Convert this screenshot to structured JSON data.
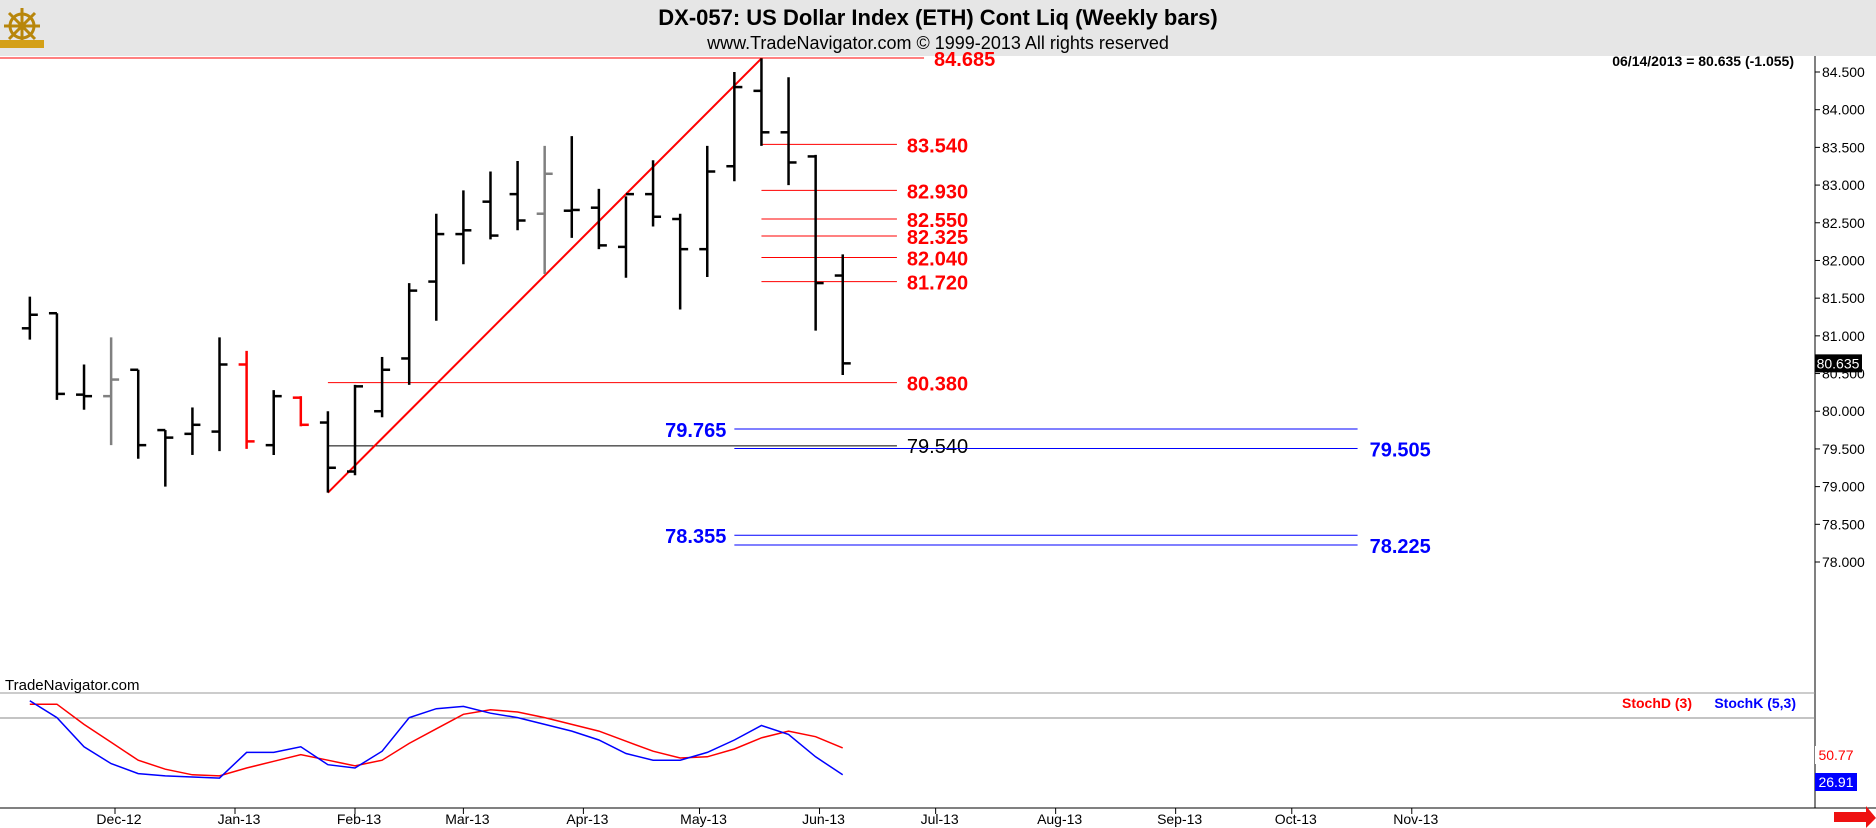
{
  "header": {
    "title": "DX-057:  US Dollar Index (ETH) Cont Liq  (Weekly bars)",
    "subtitle": "www.TradeNavigator.com © 1999-2013 All rights reserved",
    "quote": "06/14/2013 = 80.635 (-1.055)",
    "watermark": "TradeNavigator.com",
    "logo_icon": "ship-wheel-logo-icon"
  },
  "colors": {
    "background": "#ffffff",
    "header_bg": "#e6e6e6",
    "bar_up_down": "#000000",
    "bar_gray": "#808080",
    "bar_red": "#ff0000",
    "resistance": "#ff0000",
    "projection": "#0000ff",
    "stoch_k": "#0000ff",
    "stoch_d": "#ff0000"
  },
  "chart_data": {
    "type": "ohlc",
    "price_axis": {
      "ticks": [
        "84.500",
        "84.000",
        "83.500",
        "83.000",
        "82.500",
        "82.000",
        "81.500",
        "81.000",
        "80.500",
        "80.000",
        "79.500",
        "79.000",
        "78.500",
        "78.000"
      ],
      "range": [
        77.8,
        84.8
      ],
      "last_price": "80.635"
    },
    "x_axis": {
      "labels": [
        "Dec-12",
        "Jan-13",
        "Feb-13",
        "Mar-13",
        "Apr-13",
        "May-13",
        "Jun-13",
        "Jul-13",
        "Aug-13",
        "Sep-13",
        "Oct-13",
        "Nov-13"
      ]
    },
    "bars": [
      {
        "date": "2012-11-09",
        "o": 81.1,
        "h": 81.52,
        "l": 80.95,
        "c": 81.28,
        "color": "black"
      },
      {
        "date": "2012-11-16",
        "o": 81.3,
        "h": 81.3,
        "l": 80.15,
        "c": 80.23,
        "color": "black"
      },
      {
        "date": "2012-11-23",
        "o": 80.22,
        "h": 80.62,
        "l": 80.02,
        "c": 80.2,
        "color": "black"
      },
      {
        "date": "2012-11-30",
        "o": 80.2,
        "h": 80.98,
        "l": 79.55,
        "c": 80.42,
        "color": "gray"
      },
      {
        "date": "2012-12-07",
        "o": 80.55,
        "h": 80.55,
        "l": 79.37,
        "c": 79.55,
        "color": "black"
      },
      {
        "date": "2012-12-14",
        "o": 79.75,
        "h": 79.75,
        "l": 79.0,
        "c": 79.65,
        "color": "black"
      },
      {
        "date": "2012-12-21",
        "o": 79.7,
        "h": 80.05,
        "l": 79.42,
        "c": 79.82,
        "color": "black"
      },
      {
        "date": "2012-12-28",
        "o": 79.73,
        "h": 80.98,
        "l": 79.47,
        "c": 80.62,
        "color": "black"
      },
      {
        "date": "2013-01-04",
        "o": 80.62,
        "h": 80.8,
        "l": 79.5,
        "c": 79.6,
        "color": "red"
      },
      {
        "date": "2013-01-11",
        "o": 79.55,
        "h": 80.28,
        "l": 79.42,
        "c": 80.2,
        "color": "black"
      },
      {
        "date": "2013-01-18",
        "o": 80.18,
        "h": 80.2,
        "l": 79.8,
        "c": 79.82,
        "color": "red"
      },
      {
        "date": "2013-01-25",
        "o": 79.85,
        "h": 80.0,
        "l": 78.92,
        "c": 79.25,
        "color": "black"
      },
      {
        "date": "2013-02-01",
        "o": 79.2,
        "h": 80.35,
        "l": 79.15,
        "c": 80.33,
        "color": "black"
      },
      {
        "date": "2013-02-08",
        "o": 80.0,
        "h": 80.72,
        "l": 79.92,
        "c": 80.55,
        "color": "black"
      },
      {
        "date": "2013-02-15",
        "o": 80.7,
        "h": 81.7,
        "l": 80.35,
        "c": 81.6,
        "color": "black"
      },
      {
        "date": "2013-02-22",
        "o": 81.72,
        "h": 82.62,
        "l": 81.2,
        "c": 82.35,
        "color": "black"
      },
      {
        "date": "2013-03-01",
        "o": 82.35,
        "h": 82.93,
        "l": 81.95,
        "c": 82.4,
        "color": "black"
      },
      {
        "date": "2013-03-08",
        "o": 82.78,
        "h": 83.18,
        "l": 82.28,
        "c": 82.33,
        "color": "black"
      },
      {
        "date": "2013-03-15",
        "o": 82.88,
        "h": 83.32,
        "l": 82.4,
        "c": 82.53,
        "color": "black"
      },
      {
        "date": "2013-03-22",
        "o": 82.62,
        "h": 83.52,
        "l": 81.82,
        "c": 83.15,
        "color": "gray"
      },
      {
        "date": "2013-03-29",
        "o": 82.66,
        "h": 83.65,
        "l": 82.3,
        "c": 82.67,
        "color": "black"
      },
      {
        "date": "2013-04-05",
        "o": 82.7,
        "h": 82.95,
        "l": 82.15,
        "c": 82.2,
        "color": "black"
      },
      {
        "date": "2013-04-12",
        "o": 82.18,
        "h": 82.85,
        "l": 81.77,
        "c": 82.88,
        "color": "black"
      },
      {
        "date": "2013-04-19",
        "o": 82.88,
        "h": 83.33,
        "l": 82.45,
        "c": 82.58,
        "color": "black"
      },
      {
        "date": "2013-04-26",
        "o": 82.55,
        "h": 82.62,
        "l": 81.35,
        "c": 82.15,
        "color": "black"
      },
      {
        "date": "2013-05-03",
        "o": 82.15,
        "h": 83.52,
        "l": 81.78,
        "c": 83.18,
        "color": "black"
      },
      {
        "date": "2013-05-10",
        "o": 83.25,
        "h": 84.5,
        "l": 83.05,
        "c": 84.3,
        "color": "black"
      },
      {
        "date": "2013-05-17",
        "o": 84.25,
        "h": 84.68,
        "l": 83.52,
        "c": 83.7,
        "color": "black"
      },
      {
        "date": "2013-05-24",
        "o": 83.7,
        "h": 84.43,
        "l": 83.0,
        "c": 83.3,
        "color": "black"
      },
      {
        "date": "2013-05-31",
        "o": 83.38,
        "h": 83.4,
        "l": 81.07,
        "c": 81.7,
        "color": "black"
      },
      {
        "date": "2013-06-07",
        "o": 81.8,
        "h": 82.08,
        "l": 80.48,
        "c": 80.635,
        "color": "black"
      }
    ],
    "trendline": {
      "from": {
        "date": "2013-01-25",
        "price": 78.92
      },
      "to": {
        "date": "2013-05-17",
        "price": 84.68
      }
    },
    "levels": [
      {
        "label": "84.685",
        "value": 84.685,
        "color": "red",
        "from": "2012-11-01",
        "to": "2013-06-28"
      },
      {
        "label": "83.540",
        "value": 83.54,
        "color": "red",
        "from": "2013-05-17",
        "to": "2013-06-21"
      },
      {
        "label": "82.930",
        "value": 82.93,
        "color": "red",
        "from": "2013-05-17",
        "to": "2013-06-21"
      },
      {
        "label": "82.550",
        "value": 82.55,
        "color": "red",
        "from": "2013-05-17",
        "to": "2013-06-21"
      },
      {
        "label": "82.325",
        "value": 82.325,
        "color": "red",
        "from": "2013-05-17",
        "to": "2013-06-21"
      },
      {
        "label": "82.040",
        "value": 82.04,
        "color": "red",
        "from": "2013-05-17",
        "to": "2013-06-21"
      },
      {
        "label": "81.720",
        "value": 81.72,
        "color": "red",
        "from": "2013-05-17",
        "to": "2013-06-21"
      },
      {
        "label": "80.380",
        "value": 80.38,
        "color": "red",
        "from": "2013-01-25",
        "to": "2013-06-21"
      },
      {
        "label": "79.540",
        "value": 79.54,
        "color": "black",
        "from": "2013-01-25",
        "to": "2013-06-21"
      },
      {
        "label": "79.765",
        "value": 79.765,
        "color": "blue",
        "from": "2013-05-10",
        "to": "2013-10-18"
      },
      {
        "label": "79.505",
        "value": 79.505,
        "color": "blue",
        "from": "2013-05-10",
        "to": "2013-10-18"
      },
      {
        "label": "78.355",
        "value": 78.355,
        "color": "blue",
        "from": "2013-05-10",
        "to": "2013-10-18"
      },
      {
        "label": "78.225",
        "value": 78.225,
        "color": "blue",
        "from": "2013-05-10",
        "to": "2013-10-18"
      }
    ],
    "indicator": {
      "legend_d": "StochD (3)",
      "legend_k": "StochK (5,3)",
      "value_d": "50.77",
      "value_k": "26.91",
      "stoch_k": [
        93,
        78,
        52,
        37,
        28,
        26,
        25,
        24,
        47,
        47,
        52,
        36,
        33,
        48,
        78,
        86,
        88,
        82,
        78,
        72,
        66,
        58,
        46,
        40,
        40,
        47,
        58,
        71,
        63,
        43,
        27
      ],
      "stoch_d": [
        90,
        90,
        72,
        56,
        40,
        32,
        27,
        26,
        33,
        39,
        45,
        40,
        35,
        40,
        55,
        68,
        81,
        85,
        83,
        78,
        72,
        66,
        57,
        48,
        42,
        43,
        50,
        60,
        66,
        61,
        51
      ]
    }
  }
}
